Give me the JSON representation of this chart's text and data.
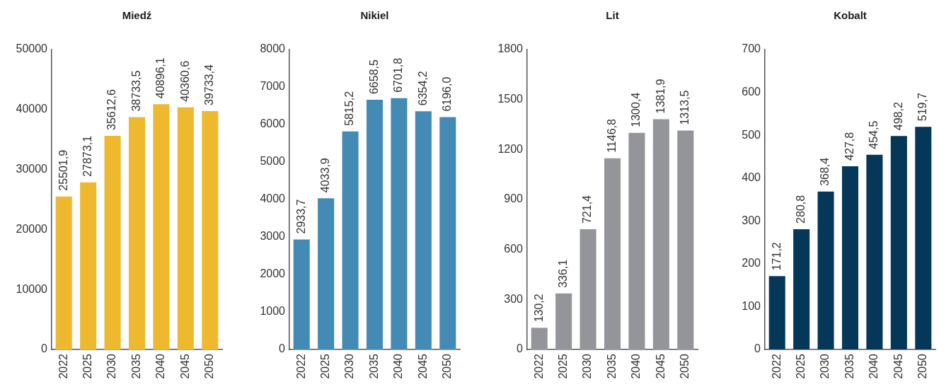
{
  "chart_data": [
    {
      "type": "bar",
      "title": "Miedź",
      "categories": [
        "2022",
        "2025",
        "2030",
        "2035",
        "2040",
        "2045",
        "2050"
      ],
      "values": [
        25501.9,
        27873.1,
        35612.6,
        38733.5,
        40896.1,
        40360.6,
        39733.4
      ],
      "value_labels": [
        "25501,9",
        "27873,1",
        "35612,6",
        "38733,5",
        "40896,1",
        "40360,6",
        "39733,4"
      ],
      "color": "#eeb92f",
      "ylim": [
        0,
        50000
      ],
      "yticks": [
        0,
        10000,
        20000,
        30000,
        40000,
        50000
      ],
      "grid": false
    },
    {
      "type": "bar",
      "title": "Nikiel",
      "categories": [
        "2022",
        "2025",
        "2030",
        "2035",
        "2040",
        "2045",
        "2050"
      ],
      "values": [
        2933.7,
        4033.9,
        5815.2,
        6658.5,
        6701.8,
        6354.2,
        6196.0
      ],
      "value_labels": [
        "2933,7",
        "4033,9",
        "5815,2",
        "6658,5",
        "6701,8",
        "6354,2",
        "6196,0"
      ],
      "color": "#438bb4",
      "ylim": [
        0,
        8000
      ],
      "yticks": [
        0,
        1000,
        2000,
        3000,
        4000,
        5000,
        6000,
        7000,
        8000
      ],
      "grid": false
    },
    {
      "type": "bar",
      "title": "Lit",
      "categories": [
        "2022",
        "2025",
        "2030",
        "2035",
        "2040",
        "2045",
        "2050"
      ],
      "values": [
        130.2,
        336.1,
        721.4,
        1146.8,
        1300.4,
        1381.9,
        1313.5
      ],
      "value_labels": [
        "130,2",
        "336,1",
        "721,4",
        "1146,8",
        "1300,4",
        "1381,9",
        "1313,5"
      ],
      "color": "#939598",
      "ylim": [
        0,
        1800
      ],
      "yticks": [
        0,
        300,
        600,
        900,
        1200,
        1500,
        1800
      ],
      "grid": false
    },
    {
      "type": "bar",
      "title": "Kobalt",
      "categories": [
        "2022",
        "2025",
        "2030",
        "2035",
        "2040",
        "2045",
        "2050"
      ],
      "values": [
        171.2,
        280.8,
        368.4,
        427.8,
        454.5,
        498.2,
        519.7
      ],
      "value_labels": [
        "171,2",
        "280,8",
        "368,4",
        "427,8",
        "454,5",
        "498,2",
        "519,7"
      ],
      "color": "#053858",
      "ylim": [
        0,
        700
      ],
      "yticks": [
        0,
        100,
        200,
        300,
        400,
        500,
        600,
        700
      ],
      "grid": false
    }
  ]
}
